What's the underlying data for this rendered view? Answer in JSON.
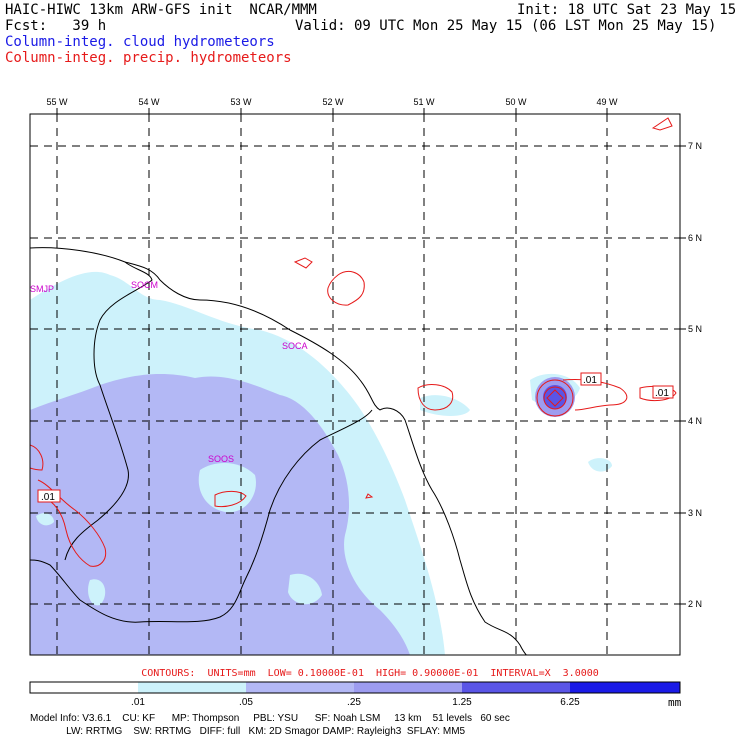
{
  "header": {
    "title_left": "HAIC-HIWC 13km ARW-GFS init  NCAR/MMM",
    "init": "Init: 18 UTC Sat 23 May 15",
    "fcst": "Fcst:   39 h",
    "valid": "Valid: 09 UTC Mon 25 May 15 (06 LST Mon 25 May 15)",
    "field_cloud": "Column-integ. cloud hydrometeors",
    "field_precip": "Column-integ. precip. hydrometeors"
  },
  "map": {
    "lon_labels": [
      "55 W",
      "54 W",
      "53 W",
      "52 W",
      "51 W",
      "50 W",
      "49 W"
    ],
    "lat_labels": [
      "7 N",
      "6 N",
      "5 N",
      "4 N",
      "3 N",
      "2 N"
    ],
    "stations": [
      "SMJP",
      "SOCM",
      "SOCA",
      "SOOS"
    ],
    "contour_labels": [
      ".01",
      ".01",
      ".01"
    ]
  },
  "contours_note": "CONTOURS:  UNITS=mm  LOW= 0.10000E-01  HIGH= 0.90000E-01  INTERVAL=X  3.0000",
  "colorbar": {
    "ticks": [
      ".01",
      ".05",
      ".25",
      "1.25",
      "6.25"
    ],
    "units": "mm",
    "colors": [
      "#ffffff",
      "#cdf2fb",
      "#b3b8f5",
      "#9d9cf0",
      "#5a55e6",
      "#1a1ae6"
    ]
  },
  "model_info": {
    "line1": "Model Info: V3.6.1    CU: KF      MP: Thompson     PBL: YSU      SF: Noah LSM     13 km    51 levels   60 sec",
    "line2": "             LW: RRTMG    SW: RRTMG   DIFF: full   KM: 2D Smagor DAMP: Rayleigh3  SFLAY: MM5"
  }
}
